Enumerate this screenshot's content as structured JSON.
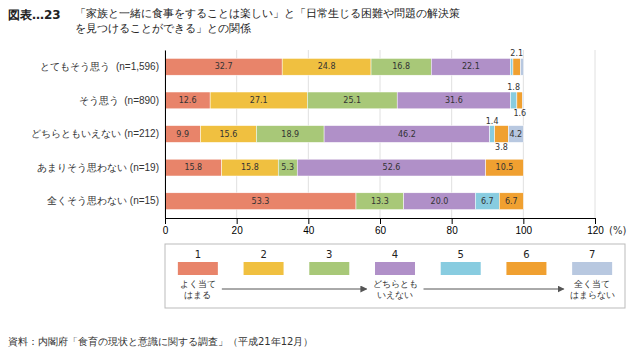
{
  "chart_data": {
    "type": "bar",
    "orientation": "horizontal",
    "stacked": true,
    "title": "「家族と一緒に食事をすることは楽しい」と「日常生じる困難や問題の解決策\nを見つけることができる」との関係",
    "annotations": [
      "図表…23",
      "資料：内閣府「食育の現状と意識に関する調査」（平成21年12月）"
    ],
    "categories": [
      "とてもそう思う  (n=1,596)",
      "そう思う  (n=890)",
      "どちらともいえない (n=212)",
      "あまりそう思わない (n=19)",
      "全くそう思わない (n=15)"
    ],
    "series": [
      {
        "name": "1",
        "color": "#E8846A",
        "note": "よく当て\nはまる",
        "values": [
          32.7,
          12.6,
          9.9,
          15.8,
          53.3
        ],
        "value_labels": [
          "32.7",
          "12.6",
          "9.9",
          "15.8",
          "53.3"
        ]
      },
      {
        "name": "2",
        "color": "#F0C040",
        "values": [
          24.8,
          27.1,
          15.6,
          15.8,
          0.0
        ],
        "value_labels": [
          "24.8",
          "27.1",
          "15.6",
          "15.8",
          null
        ]
      },
      {
        "name": "3",
        "color": "#A8C878",
        "values": [
          16.8,
          25.1,
          18.9,
          5.3,
          13.3
        ],
        "value_labels": [
          "16.8",
          "25.1",
          "18.9",
          "5.3",
          "13.3"
        ]
      },
      {
        "name": "4",
        "color": "#B090C8",
        "note": "どちらとも\nいえない",
        "values": [
          22.1,
          31.6,
          46.2,
          52.6,
          20.0
        ],
        "value_labels": [
          "22.1",
          "31.6",
          "46.2",
          "52.6",
          "20.0"
        ]
      },
      {
        "name": "5",
        "color": "#88CCE0",
        "values": [
          0.7,
          1.8,
          1.4,
          0.0,
          6.7
        ],
        "value_labels": [
          null,
          "1.8",
          "1.4",
          null,
          "6.7"
        ]
      },
      {
        "name": "6",
        "color": "#F0A030",
        "values": [
          2.1,
          1.6,
          3.8,
          10.5,
          6.7
        ],
        "value_labels": [
          "2.1",
          "1.6",
          "3.8",
          "10.5",
          "6.7"
        ]
      },
      {
        "name": "7",
        "color": "#B8C8E0",
        "note": "全く当て\nはまらない",
        "values": [
          0.9,
          0.3,
          4.2,
          0.0,
          0.0
        ],
        "value_labels": [
          null,
          null,
          "4.2",
          null,
          null
        ]
      }
    ],
    "xlabel": "(%)",
    "xlim": [
      0,
      120
    ],
    "xticks": [
      0,
      20,
      40,
      60,
      80,
      100,
      120
    ],
    "grid": true,
    "data_labels": true,
    "legend": "bottom"
  }
}
